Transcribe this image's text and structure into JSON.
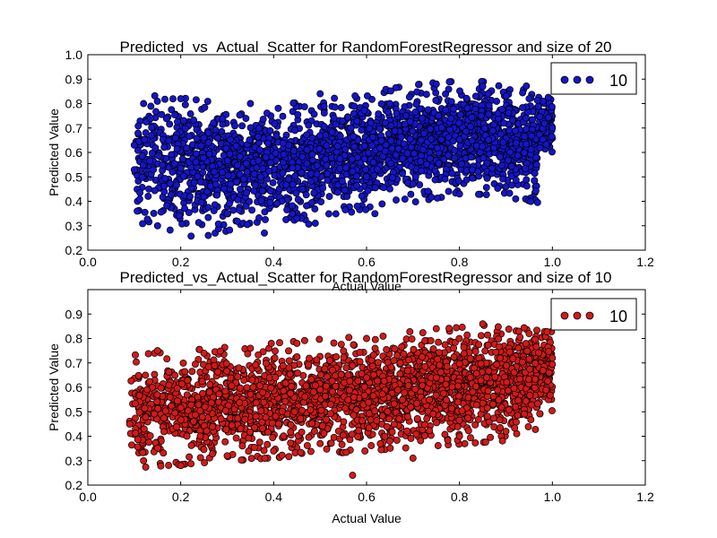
{
  "chart_data": [
    {
      "type": "scatter",
      "title": "Predicted_vs_Actual_Scatter for RandomForestRegressor and size of 20",
      "xlabel": "Actual Value",
      "ylabel": "Predicted Value",
      "xlim": [
        0.0,
        1.2
      ],
      "ylim": [
        0.2,
        1.0
      ],
      "x_ticks": [
        "0.0",
        "0.2",
        "0.4",
        "0.6",
        "0.8",
        "1.0",
        "1.2"
      ],
      "y_ticks": [
        "0.2",
        "0.3",
        "0.4",
        "0.5",
        "0.6",
        "0.7",
        "0.8",
        "0.9",
        "1.0"
      ],
      "grid": false,
      "legend_position": "top-right",
      "series": [
        {
          "name": "10",
          "color": "#1515c8",
          "x_range": [
            0.1,
            1.0
          ],
          "count_estimate": 6000,
          "points_sample": [
            [
              0.1,
              0.63
            ],
            [
              0.12,
              0.8
            ],
            [
              0.15,
              0.3
            ],
            [
              0.2,
              0.82
            ],
            [
              0.22,
              0.42
            ],
            [
              0.3,
              0.35
            ],
            [
              0.35,
              0.8
            ],
            [
              0.38,
              0.27
            ],
            [
              0.45,
              0.33
            ],
            [
              0.5,
              0.84
            ],
            [
              0.52,
              0.42
            ],
            [
              0.58,
              0.38
            ],
            [
              0.65,
              0.8
            ],
            [
              0.7,
              0.47
            ],
            [
              0.75,
              0.88
            ],
            [
              0.8,
              0.43
            ],
            [
              0.85,
              0.87
            ],
            [
              0.9,
              0.46
            ],
            [
              0.95,
              0.82
            ],
            [
              1.0,
              0.7
            ]
          ]
        }
      ]
    },
    {
      "type": "scatter",
      "title": "Predicted_vs_Actual_Scatter for RandomForestRegressor and size of 10",
      "xlabel": "Actual Value",
      "ylabel": "Predicted Value",
      "xlim": [
        0.0,
        1.2
      ],
      "ylim": [
        0.2,
        1.0
      ],
      "x_ticks": [
        "0.0",
        "0.2",
        "0.4",
        "0.6",
        "0.8",
        "1.0",
        "1.2"
      ],
      "y_ticks": [
        "0.2",
        "0.3",
        "0.4",
        "0.5",
        "0.6",
        "0.7",
        "0.8",
        "0.9"
      ],
      "grid": false,
      "legend_position": "top-right",
      "series": [
        {
          "name": "10",
          "color": "#d11a1a",
          "x_range": [
            0.09,
            1.0
          ],
          "count_estimate": 6000,
          "points_sample": [
            [
              0.09,
              0.45
            ],
            [
              0.12,
              0.3
            ],
            [
              0.15,
              0.75
            ],
            [
              0.2,
              0.28
            ],
            [
              0.25,
              0.74
            ],
            [
              0.3,
              0.32
            ],
            [
              0.35,
              0.76
            ],
            [
              0.4,
              0.34
            ],
            [
              0.45,
              0.78
            ],
            [
              0.5,
              0.37
            ],
            [
              0.57,
              0.24
            ],
            [
              0.6,
              0.8
            ],
            [
              0.65,
              0.38
            ],
            [
              0.7,
              0.31
            ],
            [
              0.75,
              0.84
            ],
            [
              0.8,
              0.4
            ],
            [
              0.85,
              0.86
            ],
            [
              0.9,
              0.42
            ],
            [
              0.95,
              0.82
            ],
            [
              1.0,
              0.72
            ]
          ]
        }
      ]
    }
  ]
}
